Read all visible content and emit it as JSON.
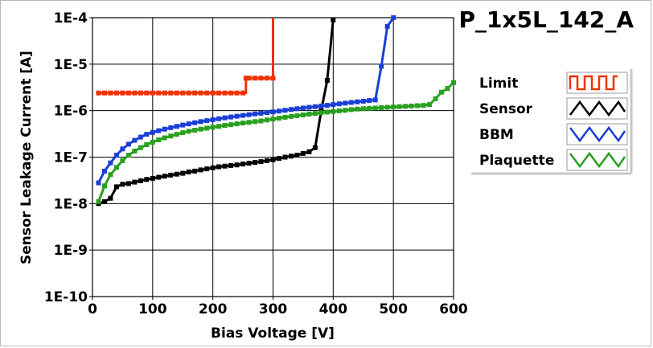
{
  "chart_data": {
    "type": "line",
    "title": "P_1x5L_142_A",
    "xlabel": "Bias Voltage [V]",
    "ylabel": "Sensor Leakage Current [A]",
    "xlim": [
      0,
      600
    ],
    "ylim": [
      1e-10,
      0.0001
    ],
    "yscale": "log",
    "grid": true,
    "legend_position": "right",
    "x_ticks": [
      0,
      100,
      200,
      300,
      400,
      500,
      600
    ],
    "x_tick_labels": [
      "0",
      "100",
      "200",
      "300",
      "400",
      "500",
      "600"
    ],
    "y_ticks": [
      0.0001,
      1e-05,
      1e-06,
      1e-07,
      1e-08,
      1e-09,
      1e-10
    ],
    "y_tick_labels": [
      "1E-4",
      "1E-5",
      "1E-6",
      "1E-7",
      "1E-8",
      "1E-9",
      "1E-10"
    ],
    "series": [
      {
        "name": "Limit",
        "color": "#ee3300",
        "marker": "square",
        "points": [
          [
            10,
            2.4e-06
          ],
          [
            20,
            2.4e-06
          ],
          [
            30,
            2.4e-06
          ],
          [
            40,
            2.4e-06
          ],
          [
            50,
            2.4e-06
          ],
          [
            60,
            2.4e-06
          ],
          [
            70,
            2.4e-06
          ],
          [
            80,
            2.4e-06
          ],
          [
            90,
            2.4e-06
          ],
          [
            100,
            2.4e-06
          ],
          [
            110,
            2.4e-06
          ],
          [
            120,
            2.4e-06
          ],
          [
            130,
            2.4e-06
          ],
          [
            140,
            2.4e-06
          ],
          [
            150,
            2.4e-06
          ],
          [
            160,
            2.4e-06
          ],
          [
            170,
            2.4e-06
          ],
          [
            180,
            2.4e-06
          ],
          [
            190,
            2.4e-06
          ],
          [
            200,
            2.4e-06
          ],
          [
            210,
            2.4e-06
          ],
          [
            220,
            2.4e-06
          ],
          [
            230,
            2.4e-06
          ],
          [
            240,
            2.4e-06
          ],
          [
            250,
            2.4e-06
          ],
          [
            255,
            5e-06
          ],
          [
            260,
            5e-06
          ],
          [
            270,
            5e-06
          ],
          [
            280,
            5e-06
          ],
          [
            290,
            5e-06
          ],
          [
            300,
            5e-06
          ],
          [
            300,
            0.0001
          ]
        ]
      },
      {
        "name": "Sensor",
        "color": "#000000",
        "marker": "square",
        "points": [
          [
            10,
            1e-08
          ],
          [
            20,
            1.1e-08
          ],
          [
            30,
            1.3e-08
          ],
          [
            40,
            2.3e-08
          ],
          [
            50,
            2.6e-08
          ],
          [
            60,
            2.7e-08
          ],
          [
            70,
            2.9e-08
          ],
          [
            80,
            3.1e-08
          ],
          [
            90,
            3.3e-08
          ],
          [
            100,
            3.5e-08
          ],
          [
            110,
            3.7e-08
          ],
          [
            120,
            3.9e-08
          ],
          [
            130,
            4.1e-08
          ],
          [
            140,
            4.3e-08
          ],
          [
            150,
            4.5e-08
          ],
          [
            160,
            4.8e-08
          ],
          [
            170,
            5e-08
          ],
          [
            180,
            5.3e-08
          ],
          [
            190,
            5.6e-08
          ],
          [
            200,
            5.9e-08
          ],
          [
            210,
            6.2e-08
          ],
          [
            220,
            6.4e-08
          ],
          [
            230,
            6.6e-08
          ],
          [
            240,
            6.8e-08
          ],
          [
            250,
            7.1e-08
          ],
          [
            260,
            7.4e-08
          ],
          [
            270,
            7.7e-08
          ],
          [
            280,
            8e-08
          ],
          [
            290,
            8.4e-08
          ],
          [
            300,
            8.8e-08
          ],
          [
            310,
            9.4e-08
          ],
          [
            320,
            1e-07
          ],
          [
            330,
            1.05e-07
          ],
          [
            340,
            1.1e-07
          ],
          [
            350,
            1.2e-07
          ],
          [
            360,
            1.3e-07
          ],
          [
            370,
            1.6e-07
          ],
          [
            380,
            1e-06
          ],
          [
            390,
            4.5e-06
          ],
          [
            400,
            9e-05
          ]
        ]
      },
      {
        "name": "BBM",
        "color": "#1a3fd6",
        "marker": "square",
        "points": [
          [
            10,
            2.8e-08
          ],
          [
            20,
            5e-08
          ],
          [
            30,
            7.5e-08
          ],
          [
            40,
            1.1e-07
          ],
          [
            50,
            1.5e-07
          ],
          [
            60,
            1.9e-07
          ],
          [
            70,
            2.3e-07
          ],
          [
            80,
            2.7e-07
          ],
          [
            90,
            3.1e-07
          ],
          [
            100,
            3.4e-07
          ],
          [
            110,
            3.7e-07
          ],
          [
            120,
            4e-07
          ],
          [
            130,
            4.3e-07
          ],
          [
            140,
            4.6e-07
          ],
          [
            150,
            4.9e-07
          ],
          [
            160,
            5.2e-07
          ],
          [
            170,
            5.5e-07
          ],
          [
            180,
            5.8e-07
          ],
          [
            190,
            6.1e-07
          ],
          [
            200,
            6.4e-07
          ],
          [
            210,
            6.7e-07
          ],
          [
            220,
            7e-07
          ],
          [
            230,
            7.3e-07
          ],
          [
            240,
            7.6e-07
          ],
          [
            250,
            7.9e-07
          ],
          [
            260,
            8.2e-07
          ],
          [
            270,
            8.5e-07
          ],
          [
            280,
            8.8e-07
          ],
          [
            290,
            9.1e-07
          ],
          [
            300,
            9.4e-07
          ],
          [
            310,
            9.8e-07
          ],
          [
            320,
            1.02e-06
          ],
          [
            330,
            1.06e-06
          ],
          [
            340,
            1.1e-06
          ],
          [
            350,
            1.14e-06
          ],
          [
            360,
            1.18e-06
          ],
          [
            370,
            1.22e-06
          ],
          [
            380,
            1.26e-06
          ],
          [
            390,
            1.3e-06
          ],
          [
            400,
            1.35e-06
          ],
          [
            410,
            1.4e-06
          ],
          [
            420,
            1.45e-06
          ],
          [
            430,
            1.5e-06
          ],
          [
            440,
            1.55e-06
          ],
          [
            450,
            1.6e-06
          ],
          [
            460,
            1.65e-06
          ],
          [
            470,
            1.7e-06
          ],
          [
            480,
            9e-06
          ],
          [
            490,
            6.5e-05
          ],
          [
            500,
            0.0001
          ]
        ]
      },
      {
        "name": "Plaquette",
        "color": "#2aa020",
        "marker": "square",
        "points": [
          [
            10,
            1.1e-08
          ],
          [
            20,
            2.4e-08
          ],
          [
            30,
            4.2e-08
          ],
          [
            40,
            6e-08
          ],
          [
            50,
            8.4e-08
          ],
          [
            60,
            1.1e-07
          ],
          [
            70,
            1.35e-07
          ],
          [
            80,
            1.6e-07
          ],
          [
            90,
            1.85e-07
          ],
          [
            100,
            2.1e-07
          ],
          [
            110,
            2.35e-07
          ],
          [
            120,
            2.6e-07
          ],
          [
            130,
            2.85e-07
          ],
          [
            140,
            3.1e-07
          ],
          [
            150,
            3.35e-07
          ],
          [
            160,
            3.6e-07
          ],
          [
            170,
            3.8e-07
          ],
          [
            180,
            4e-07
          ],
          [
            190,
            4.2e-07
          ],
          [
            200,
            4.4e-07
          ],
          [
            210,
            4.6e-07
          ],
          [
            220,
            4.8e-07
          ],
          [
            230,
            5e-07
          ],
          [
            240,
            5.2e-07
          ],
          [
            250,
            5.4e-07
          ],
          [
            260,
            5.6e-07
          ],
          [
            270,
            5.8e-07
          ],
          [
            280,
            6e-07
          ],
          [
            290,
            6.3e-07
          ],
          [
            300,
            6.6e-07
          ],
          [
            310,
            6.9e-07
          ],
          [
            320,
            7.2e-07
          ],
          [
            330,
            7.5e-07
          ],
          [
            340,
            7.8e-07
          ],
          [
            350,
            8.1e-07
          ],
          [
            360,
            8.4e-07
          ],
          [
            370,
            8.7e-07
          ],
          [
            380,
            9e-07
          ],
          [
            390,
            9.3e-07
          ],
          [
            400,
            9.6e-07
          ],
          [
            410,
            9.9e-07
          ],
          [
            420,
            1.02e-06
          ],
          [
            430,
            1.05e-06
          ],
          [
            440,
            1.08e-06
          ],
          [
            450,
            1.1e-06
          ],
          [
            460,
            1.12e-06
          ],
          [
            470,
            1.14e-06
          ],
          [
            480,
            1.16e-06
          ],
          [
            490,
            1.18e-06
          ],
          [
            500,
            1.2e-06
          ],
          [
            510,
            1.22e-06
          ],
          [
            520,
            1.24e-06
          ],
          [
            530,
            1.26e-06
          ],
          [
            540,
            1.28e-06
          ],
          [
            550,
            1.3e-06
          ],
          [
            560,
            1.35e-06
          ],
          [
            570,
            1.8e-06
          ],
          [
            580,
            2.5e-06
          ],
          [
            590,
            3e-06
          ],
          [
            600,
            4e-06
          ]
        ]
      }
    ]
  }
}
